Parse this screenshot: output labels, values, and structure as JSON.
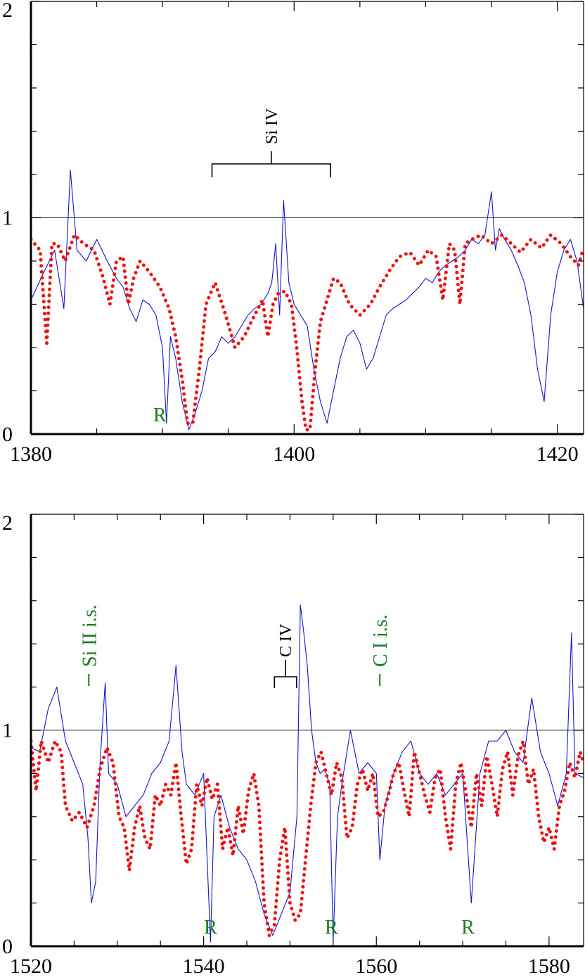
{
  "colors": {
    "observed": "#1414d2",
    "model": "#ee1111",
    "annotation": "#1e7a1e",
    "axis": "#000000"
  },
  "chart_data": [
    {
      "type": "line",
      "title": "",
      "xlabel": "",
      "ylabel": "",
      "xlim": [
        1380,
        1422
      ],
      "ylim": [
        0,
        2
      ],
      "x_ticks": [
        1380,
        1400,
        1420
      ],
      "y_ticks": [
        0,
        1,
        2
      ],
      "x_minor_step": 5,
      "y_minor_step": 0.2,
      "reference_line": 1,
      "series": [
        {
          "style": "thin-solid",
          "x": [
            1380.0,
            1381.0,
            1381.8,
            1382.5,
            1383.0,
            1383.5,
            1384.2,
            1385.0,
            1385.8,
            1386.5,
            1387.0,
            1387.5,
            1388.0,
            1388.5,
            1389.0,
            1389.5,
            1390.0,
            1390.3,
            1390.6,
            1391.0,
            1391.5,
            1392.0,
            1392.5,
            1393.0,
            1393.5,
            1394.0,
            1394.5,
            1395.0,
            1395.5,
            1396.0,
            1396.5,
            1397.0,
            1397.5,
            1398.0,
            1398.3,
            1398.6,
            1398.9,
            1399.2,
            1399.6,
            1400.0,
            1400.5,
            1401.0,
            1401.5,
            1402.0,
            1402.5,
            1403.0,
            1403.5,
            1404.0,
            1404.5,
            1405.0,
            1405.5,
            1406.0,
            1406.5,
            1407.0,
            1407.5,
            1408.0,
            1408.5,
            1409.0,
            1409.5,
            1410.0,
            1410.5,
            1411.0,
            1411.5,
            1412.0,
            1412.5,
            1413.0,
            1413.5,
            1414.0,
            1414.5,
            1415.0,
            1415.3,
            1415.6,
            1416.0,
            1416.5,
            1417.0,
            1417.5,
            1418.0,
            1418.5,
            1419.0,
            1419.5,
            1420.0,
            1420.5,
            1421.0,
            1421.5,
            1422.0
          ],
          "y": [
            0.62,
            0.75,
            0.85,
            0.58,
            1.22,
            0.85,
            0.8,
            0.9,
            0.8,
            0.72,
            0.68,
            0.58,
            0.52,
            0.62,
            0.6,
            0.55,
            0.4,
            0.05,
            0.45,
            0.35,
            0.15,
            0.02,
            0.1,
            0.2,
            0.35,
            0.38,
            0.45,
            0.42,
            0.45,
            0.5,
            0.55,
            0.58,
            0.6,
            0.65,
            0.7,
            0.88,
            0.55,
            1.08,
            0.7,
            0.6,
            0.55,
            0.5,
            0.3,
            0.15,
            0.05,
            0.2,
            0.35,
            0.45,
            0.48,
            0.42,
            0.3,
            0.35,
            0.45,
            0.55,
            0.58,
            0.6,
            0.62,
            0.65,
            0.68,
            0.72,
            0.7,
            0.75,
            0.78,
            0.8,
            0.82,
            0.85,
            0.9,
            0.88,
            0.92,
            1.12,
            0.85,
            0.95,
            0.9,
            0.85,
            0.78,
            0.7,
            0.55,
            0.3,
            0.15,
            0.55,
            0.75,
            0.85,
            0.9,
            0.8,
            0.58
          ]
        },
        {
          "style": "dotted",
          "x": [
            1380.0,
            1380.7,
            1381.2,
            1381.6,
            1382.0,
            1382.6,
            1383.3,
            1384.0,
            1384.8,
            1385.5,
            1386.0,
            1386.5,
            1387.0,
            1387.4,
            1387.8,
            1388.3,
            1389.0,
            1389.8,
            1390.5,
            1391.0,
            1391.5,
            1391.9,
            1392.3,
            1392.8,
            1393.3,
            1394.0,
            1394.8,
            1395.5,
            1396.2,
            1397.0,
            1397.6,
            1398.0,
            1398.4,
            1398.8,
            1399.3,
            1399.8,
            1400.2,
            1400.6,
            1400.9,
            1401.2,
            1401.6,
            1402.0,
            1402.5,
            1403.0,
            1403.5,
            1404.2,
            1405.0,
            1405.8,
            1406.5,
            1407.3,
            1408.0,
            1408.8,
            1409.5,
            1410.2,
            1410.8,
            1411.3,
            1411.8,
            1412.2,
            1412.6,
            1413.0,
            1413.5,
            1414.2,
            1415.0,
            1415.8,
            1416.5,
            1417.2,
            1418.0,
            1418.8,
            1419.5,
            1420.3,
            1421.0,
            1421.6,
            1422.0
          ],
          "y": [
            0.9,
            0.85,
            0.42,
            0.88,
            0.88,
            0.8,
            0.92,
            0.88,
            0.85,
            0.72,
            0.6,
            0.8,
            0.82,
            0.6,
            0.72,
            0.8,
            0.75,
            0.68,
            0.58,
            0.45,
            0.25,
            0.05,
            0.05,
            0.3,
            0.6,
            0.7,
            0.55,
            0.4,
            0.45,
            0.55,
            0.62,
            0.45,
            0.6,
            0.65,
            0.66,
            0.6,
            0.4,
            0.15,
            0.02,
            0.02,
            0.3,
            0.52,
            0.62,
            0.72,
            0.7,
            0.6,
            0.55,
            0.6,
            0.68,
            0.76,
            0.82,
            0.84,
            0.78,
            0.85,
            0.82,
            0.62,
            0.88,
            0.85,
            0.6,
            0.88,
            0.9,
            0.92,
            0.88,
            0.92,
            0.88,
            0.84,
            0.9,
            0.86,
            0.92,
            0.88,
            0.82,
            0.78,
            0.86
          ]
        }
      ],
      "annotations": {
        "line_id": {
          "label": "Si IV",
          "components_x": [
            1393.76,
            1402.77
          ]
        },
        "reseau_marks": [
          {
            "label": "R",
            "x": 1389.8
          }
        ]
      }
    },
    {
      "type": "line",
      "title": "",
      "xlabel": "",
      "ylabel": "",
      "xlim": [
        1520,
        1584
      ],
      "ylim": [
        0,
        2
      ],
      "x_ticks": [
        1520,
        1540,
        1560,
        1580
      ],
      "y_ticks": [
        0,
        1,
        2
      ],
      "x_minor_step": 5,
      "y_minor_step": 0.2,
      "reference_line": 1,
      "series": [
        {
          "style": "thin-solid",
          "x": [
            1520.0,
            1521.0,
            1522.0,
            1523.0,
            1524.0,
            1525.0,
            1526.0,
            1526.6,
            1527.0,
            1527.5,
            1528.0,
            1528.6,
            1529.0,
            1530.0,
            1531.0,
            1532.0,
            1533.0,
            1534.0,
            1535.0,
            1536.0,
            1536.8,
            1537.5,
            1538.0,
            1539.0,
            1540.0,
            1540.8,
            1541.2,
            1542.0,
            1543.0,
            1544.0,
            1545.0,
            1546.0,
            1547.0,
            1548.0,
            1549.0,
            1550.0,
            1550.8,
            1551.2,
            1551.6,
            1552.0,
            1552.5,
            1553.0,
            1553.5,
            1554.0,
            1554.6,
            1555.0,
            1555.5,
            1556.0,
            1557.0,
            1558.0,
            1559.0,
            1560.0,
            1560.4,
            1561.0,
            1562.0,
            1563.0,
            1564.0,
            1565.0,
            1566.0,
            1567.0,
            1568.0,
            1569.0,
            1570.0,
            1571.0,
            1572.0,
            1573.0,
            1574.0,
            1575.0,
            1576.0,
            1577.0,
            1578.0,
            1579.0,
            1580.0,
            1581.0,
            1582.0,
            1582.6,
            1583.0,
            1584.0
          ],
          "y": [
            0.92,
            0.9,
            1.1,
            1.2,
            0.95,
            0.85,
            0.75,
            0.5,
            0.2,
            0.3,
            0.85,
            1.22,
            0.8,
            0.75,
            0.6,
            0.65,
            0.7,
            0.8,
            0.85,
            0.95,
            1.3,
            0.9,
            0.75,
            0.7,
            0.8,
            0.02,
            0.6,
            0.7,
            0.55,
            0.45,
            0.4,
            0.3,
            0.15,
            0.05,
            0.15,
            0.25,
            0.6,
            1.58,
            1.45,
            1.3,
            1.0,
            0.85,
            0.8,
            0.82,
            0.75,
            0.02,
            0.6,
            0.75,
            1.0,
            0.8,
            0.85,
            0.8,
            0.4,
            0.65,
            0.8,
            0.9,
            0.95,
            0.8,
            0.75,
            0.8,
            0.7,
            0.75,
            0.8,
            0.2,
            0.8,
            0.95,
            0.95,
            1.0,
            0.9,
            0.85,
            1.15,
            0.9,
            0.8,
            0.65,
            0.8,
            1.45,
            0.8,
            0.78
          ]
        },
        {
          "style": "dotted",
          "x": [
            1520.0,
            1520.6,
            1521.2,
            1522.0,
            1522.8,
            1523.5,
            1524.0,
            1524.8,
            1525.6,
            1526.5,
            1527.3,
            1528.0,
            1528.8,
            1529.5,
            1530.2,
            1530.8,
            1531.4,
            1532.0,
            1532.6,
            1533.2,
            1533.8,
            1534.4,
            1535.0,
            1535.6,
            1536.2,
            1536.8,
            1537.4,
            1538.0,
            1538.6,
            1539.2,
            1539.8,
            1540.4,
            1541.0,
            1541.6,
            1542.2,
            1542.8,
            1543.4,
            1544.0,
            1544.6,
            1545.2,
            1545.8,
            1546.4,
            1547.0,
            1547.6,
            1548.2,
            1548.8,
            1549.4,
            1550.0,
            1550.6,
            1551.2,
            1551.8,
            1552.4,
            1553.0,
            1553.6,
            1554.2,
            1554.8,
            1555.4,
            1556.0,
            1556.6,
            1557.2,
            1557.8,
            1558.4,
            1559.0,
            1559.6,
            1560.2,
            1560.8,
            1561.4,
            1562.0,
            1562.6,
            1563.2,
            1563.8,
            1564.4,
            1565.0,
            1565.6,
            1566.2,
            1566.8,
            1567.4,
            1568.0,
            1568.6,
            1569.2,
            1569.8,
            1570.4,
            1571.0,
            1571.6,
            1572.2,
            1572.8,
            1573.4,
            1574.0,
            1574.6,
            1575.2,
            1575.8,
            1576.4,
            1577.0,
            1577.6,
            1578.2,
            1578.8,
            1579.4,
            1580.0,
            1580.6,
            1581.2,
            1581.8,
            1582.4,
            1583.0,
            1583.6,
            1584.0
          ],
          "y": [
            0.95,
            0.72,
            0.95,
            0.85,
            0.95,
            0.9,
            0.65,
            0.58,
            0.62,
            0.55,
            0.65,
            0.82,
            0.92,
            0.85,
            0.6,
            0.55,
            0.35,
            0.55,
            0.65,
            0.5,
            0.45,
            0.7,
            0.65,
            0.75,
            0.7,
            0.85,
            0.6,
            0.38,
            0.45,
            0.75,
            0.65,
            0.78,
            0.68,
            0.75,
            0.45,
            0.55,
            0.42,
            0.65,
            0.52,
            0.72,
            0.8,
            0.65,
            0.2,
            0.05,
            0.1,
            0.4,
            0.55,
            0.2,
            0.12,
            0.15,
            0.4,
            0.65,
            0.85,
            0.9,
            0.8,
            0.7,
            0.85,
            0.78,
            0.5,
            0.55,
            0.75,
            0.82,
            0.72,
            0.8,
            0.6,
            0.62,
            0.7,
            0.8,
            0.85,
            0.72,
            0.6,
            0.9,
            0.8,
            0.7,
            0.62,
            0.78,
            0.82,
            0.6,
            0.45,
            0.75,
            0.85,
            0.7,
            0.55,
            0.8,
            0.65,
            0.88,
            0.75,
            0.6,
            0.82,
            0.9,
            0.7,
            0.88,
            0.95,
            0.75,
            0.82,
            0.6,
            0.48,
            0.55,
            0.45,
            0.65,
            0.72,
            0.85,
            0.78,
            0.9,
            0.85
          ]
        }
      ],
      "annotations": {
        "line_id": {
          "label": "C IV",
          "components_x": [
            1548.2,
            1550.77
          ]
        },
        "interstellar_marks": [
          {
            "label": "Si II i.s.",
            "x": 1526.7
          },
          {
            "label": "C I i.s.",
            "x": 1560.4
          }
        ],
        "reseau_marks": [
          {
            "label": "R",
            "x": 1540.8
          },
          {
            "label": "R",
            "x": 1554.8
          },
          {
            "label": "R",
            "x": 1570.6
          }
        ]
      }
    }
  ]
}
